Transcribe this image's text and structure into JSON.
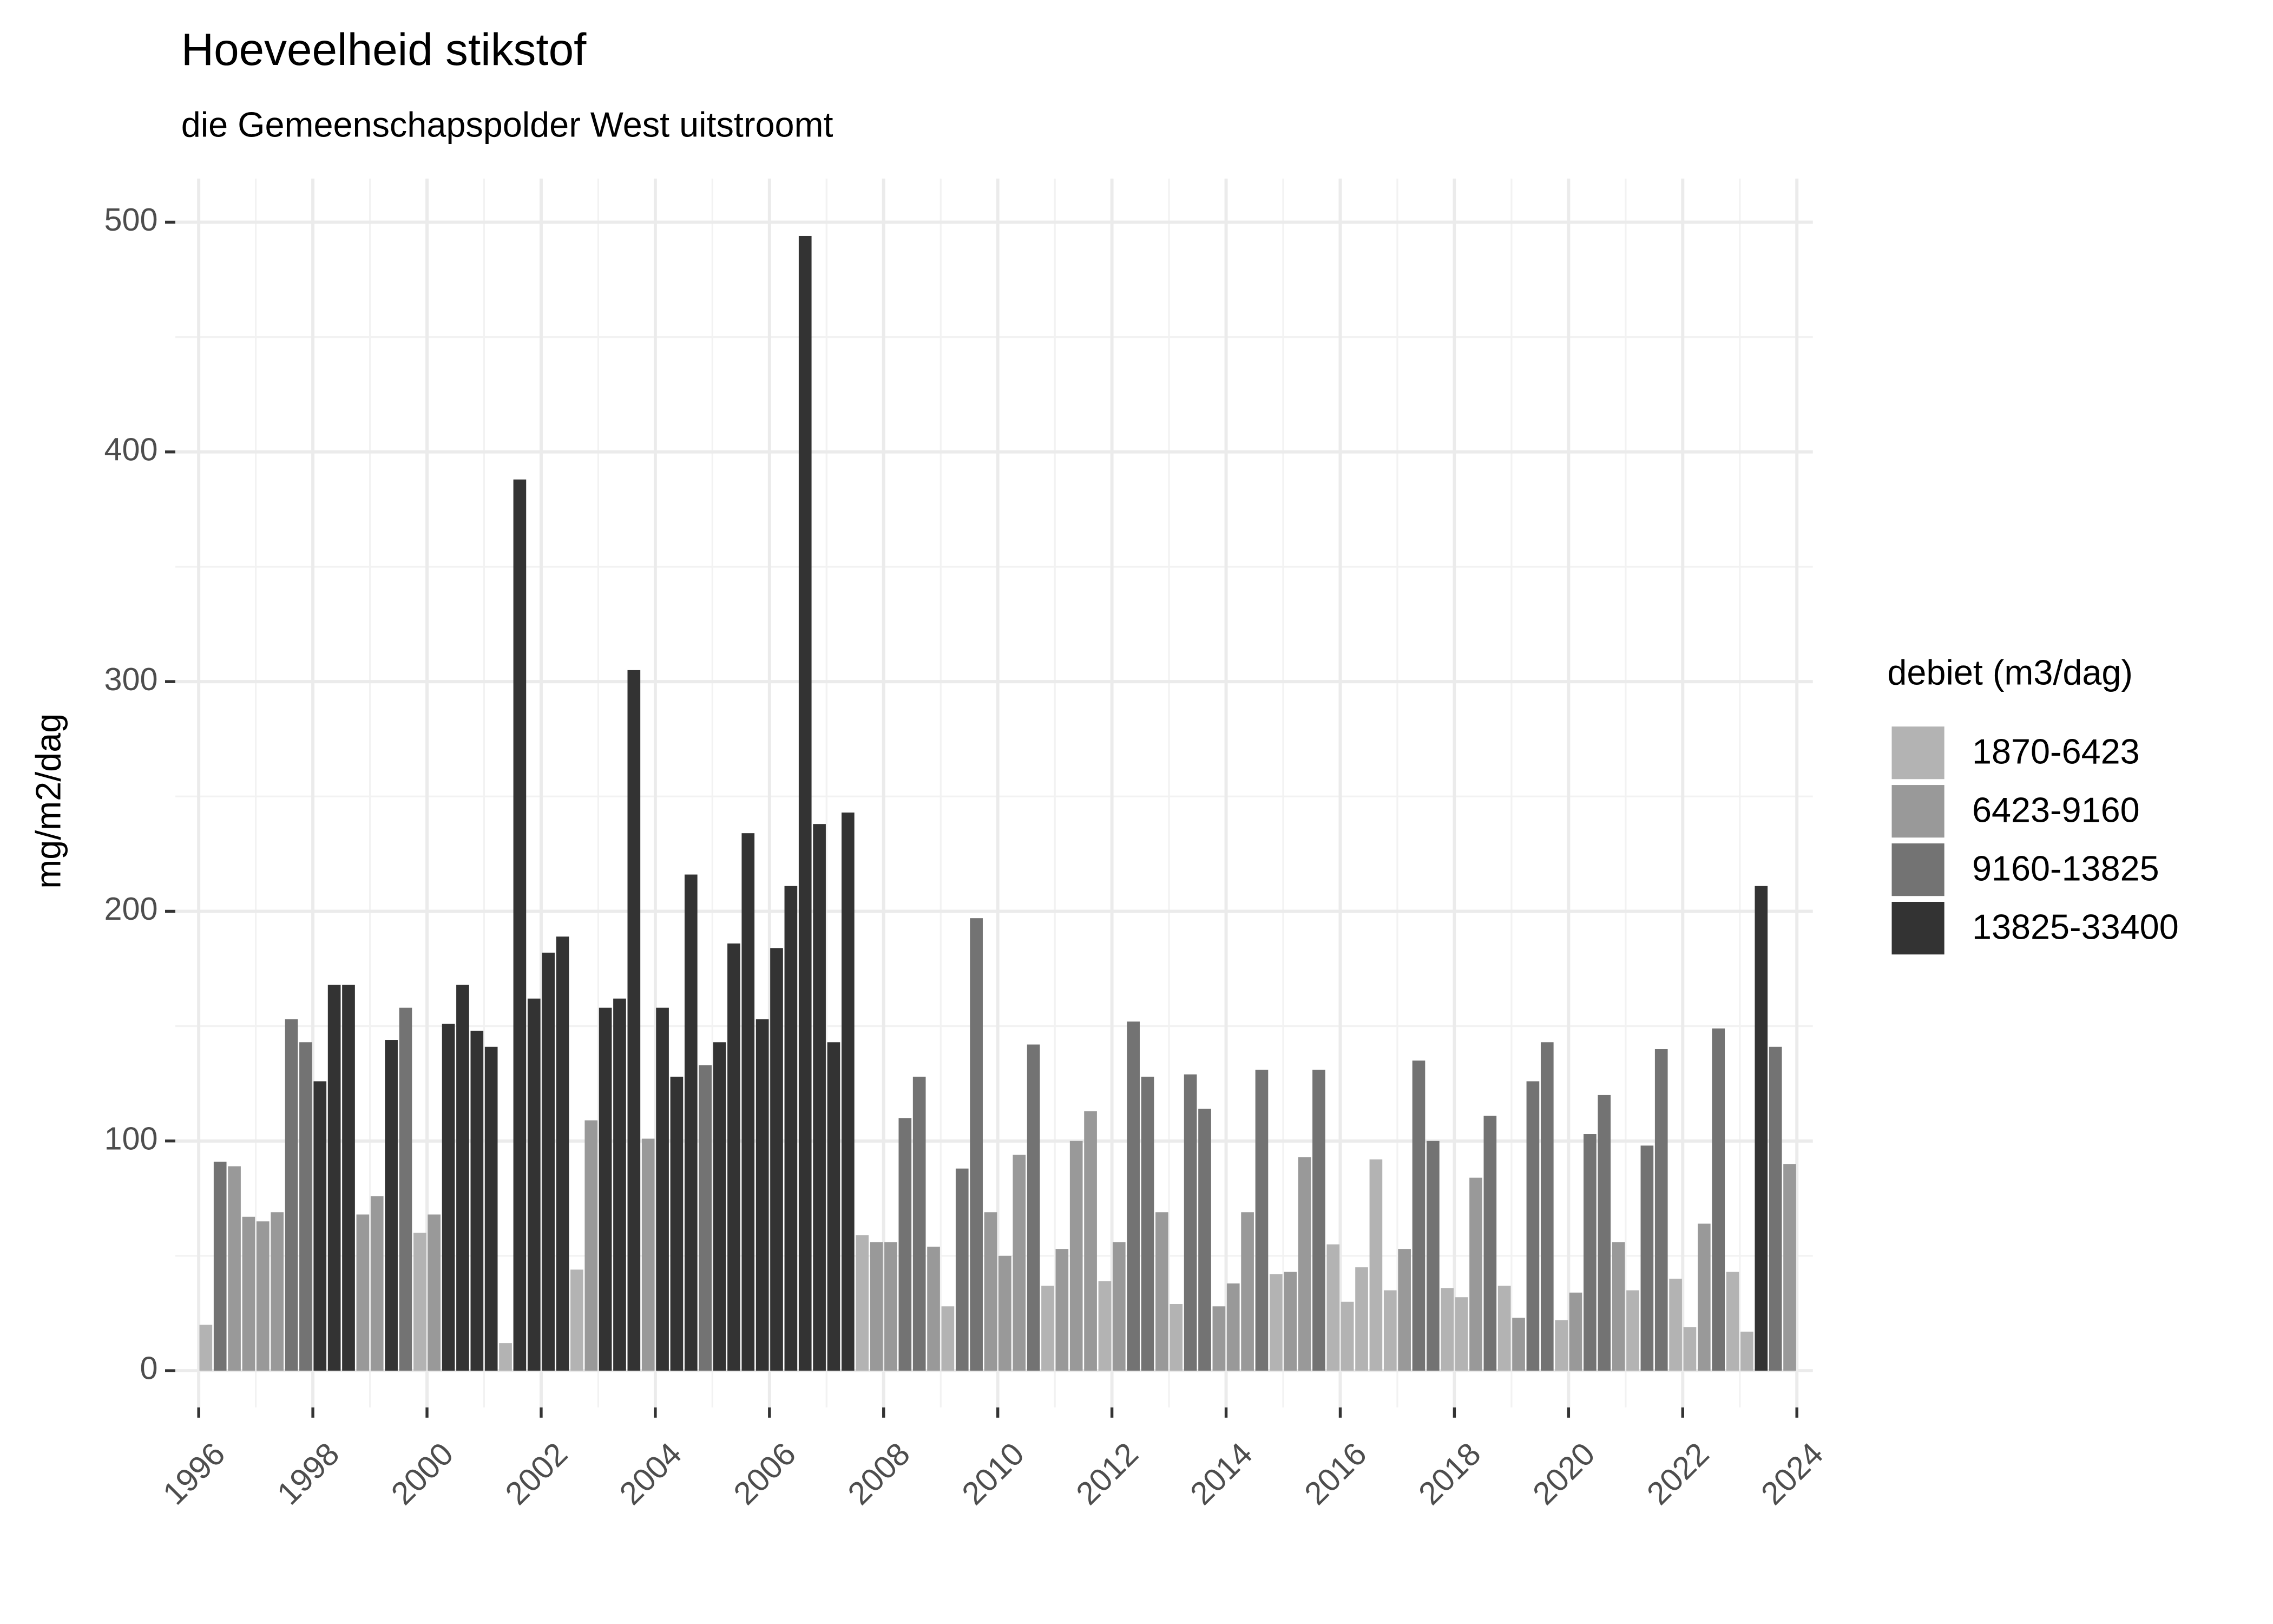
{
  "chart_data": {
    "type": "bar",
    "title": "Hoeveelheid stikstof",
    "subtitle": "die Gemeenschapspolder West uitstroomt",
    "y_label": "mg/m2/dag",
    "legend_title": "debiet (m3/dag)",
    "legend_position": "right",
    "grid": true,
    "xlim": [
      1995.59,
      2024.28
    ],
    "xticks": [
      1996,
      1998,
      2000,
      2002,
      2004,
      2006,
      2008,
      2010,
      2012,
      2014,
      2016,
      2018,
      2020,
      2022,
      2024
    ],
    "ylim": [
      -16,
      519
    ],
    "yticks": [
      0,
      100,
      200,
      300,
      400,
      500
    ],
    "bar_width": 0.25,
    "series": [
      {
        "name": "1870-6423",
        "color": "#b3b3b3",
        "x": [
          1996,
          1999.75,
          2001.25,
          2002.5,
          2007.5,
          2009,
          2010.75,
          2011.75,
          2013,
          2014.75,
          2015.75,
          2016,
          2016.25,
          2016.5,
          2016.75,
          2017.75,
          2018,
          2018.75,
          2019.75,
          2021,
          2021.75,
          2022,
          2022.75,
          2023
        ],
        "values": [
          20,
          60,
          12,
          44,
          59,
          28,
          37,
          39,
          29,
          42,
          55,
          30,
          45,
          92,
          35,
          36,
          32,
          37,
          22,
          35,
          40,
          19,
          43,
          17
        ]
      },
      {
        "name": "6423-9160",
        "color": "#999999",
        "x": [
          1996.5,
          1996.75,
          1997,
          1997.25,
          1998.75,
          1999,
          2000,
          2002.75,
          2003.75,
          2007.75,
          2008,
          2008.75,
          2009.75,
          2010,
          2010.25,
          2011,
          2011.25,
          2011.5,
          2012,
          2012.75,
          2013.75,
          2014,
          2014.25,
          2015,
          2015.25,
          2017,
          2018.25,
          2019,
          2020,
          2020.75,
          2022.25,
          2023.75
        ],
        "values": [
          89,
          67,
          65,
          69,
          68,
          76,
          68,
          109,
          101,
          56,
          56,
          54,
          69,
          50,
          94,
          53,
          100,
          113,
          56,
          69,
          28,
          38,
          69,
          43,
          93,
          53,
          84,
          23,
          34,
          56,
          64,
          90
        ]
      },
      {
        "name": "9160-13825",
        "color": "#737373",
        "x": [
          1996.25,
          1997.5,
          1997.75,
          1999.5,
          2004.75,
          2008.25,
          2008.5,
          2009.25,
          2009.5,
          2010.5,
          2012.25,
          2012.5,
          2013.25,
          2013.5,
          2014.5,
          2015.5,
          2017.25,
          2017.5,
          2018.5,
          2019.25,
          2019.5,
          2020.25,
          2020.5,
          2021.25,
          2021.5,
          2022.5,
          2023.5
        ],
        "values": [
          91,
          153,
          143,
          158,
          133,
          110,
          128,
          88,
          197,
          142,
          152,
          128,
          129,
          114,
          131,
          131,
          135,
          100,
          111,
          126,
          143,
          103,
          120,
          98,
          140,
          149,
          141
        ]
      },
      {
        "name": "13825-33400",
        "color": "#333333",
        "x": [
          1998,
          1998.25,
          1998.5,
          1999.25,
          2000.25,
          2000.5,
          2000.75,
          2001,
          2001.5,
          2001.75,
          2002,
          2002.25,
          2003,
          2003.25,
          2003.5,
          2004,
          2004.25,
          2004.5,
          2005,
          2005.25,
          2005.5,
          2005.75,
          2006,
          2006.25,
          2006.5,
          2006.75,
          2007,
          2007.25,
          2023.25
        ],
        "values": [
          126,
          168,
          168,
          144,
          151,
          168,
          148,
          141,
          388,
          162,
          182,
          189,
          158,
          162,
          305,
          158,
          128,
          216,
          143,
          186,
          234,
          153,
          184,
          211,
          494,
          238,
          143,
          243,
          211
        ]
      }
    ]
  }
}
